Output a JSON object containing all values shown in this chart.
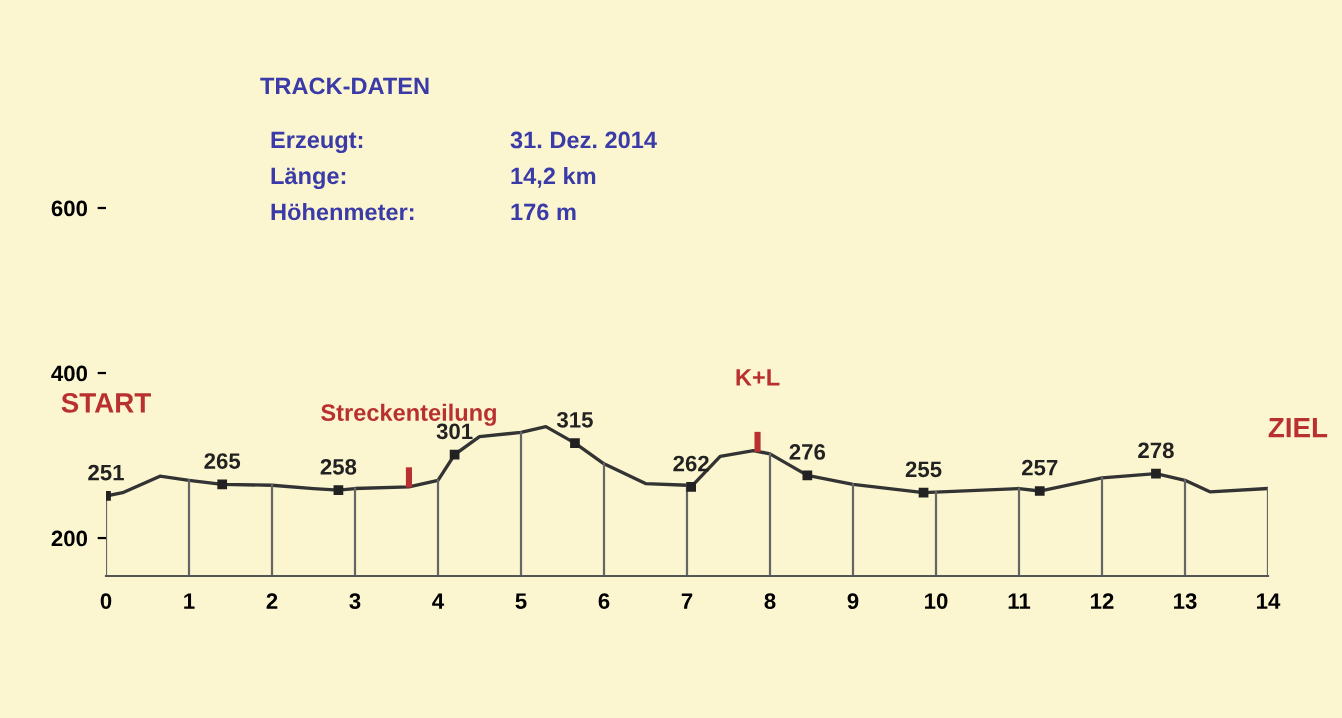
{
  "chart_data": {
    "type": "line",
    "x": [
      0,
      0.2,
      0.65,
      1,
      1.4,
      2,
      2.5,
      2.8,
      3,
      3.65,
      4,
      4.2,
      4.5,
      5,
      5.3,
      5.65,
      6,
      6.5,
      7,
      7.05,
      7.4,
      7.8,
      8,
      8.45,
      9,
      9.85,
      11,
      11.25,
      12,
      12.65,
      13,
      13.3,
      14
    ],
    "series": [
      {
        "color": "#333333",
        "values": [
          251,
          255,
          275,
          270,
          265,
          264,
          260,
          258,
          260,
          262,
          270,
          301,
          323,
          328,
          335,
          315,
          290,
          266,
          264,
          262,
          299,
          306,
          302,
          276,
          265,
          255,
          260,
          257,
          273,
          278,
          270,
          256,
          260
        ],
        "value_labels": [
          "251",
          null,
          null,
          null,
          "265",
          null,
          null,
          "258",
          null,
          null,
          null,
          "301",
          null,
          null,
          null,
          "315",
          null,
          null,
          null,
          "262",
          null,
          null,
          null,
          "276",
          null,
          "255",
          null,
          "257",
          null,
          "278",
          null,
          null,
          null
        ]
      }
    ],
    "xlim": [
      0,
      14
    ],
    "ylim": [
      154,
      600
    ],
    "xticks": [
      0,
      1,
      2,
      3,
      4,
      5,
      6,
      7,
      8,
      9,
      10,
      11,
      12,
      13,
      14
    ],
    "yticks": [
      200,
      400,
      600
    ],
    "ref_lines": [
      {
        "axis": "x",
        "value": 0,
        "color": "#666666"
      },
      {
        "axis": "x",
        "value": 1,
        "color": "#666666"
      },
      {
        "axis": "x",
        "value": 2,
        "color": "#666666"
      },
      {
        "axis": "x",
        "value": 3,
        "color": "#666666"
      },
      {
        "axis": "x",
        "value": 4,
        "color": "#666666"
      },
      {
        "axis": "x",
        "value": 5,
        "color": "#666666"
      },
      {
        "axis": "x",
        "value": 6,
        "color": "#666666"
      },
      {
        "axis": "x",
        "value": 7,
        "color": "#666666"
      },
      {
        "axis": "x",
        "value": 8,
        "color": "#666666"
      },
      {
        "axis": "x",
        "value": 9,
        "color": "#666666"
      },
      {
        "axis": "x",
        "value": 10,
        "color": "#666666"
      },
      {
        "axis": "x",
        "value": 11,
        "color": "#666666"
      },
      {
        "axis": "x",
        "value": 12,
        "color": "#666666"
      },
      {
        "axis": "x",
        "value": 13,
        "color": "#666666"
      },
      {
        "axis": "x",
        "value": 14,
        "color": "#666666"
      }
    ],
    "marker": "none",
    "line_style": "solid",
    "legend": false,
    "annotations": [
      "TRACK-DATEN",
      "Erzeugt:",
      "31. Dez. 2014",
      "Länge:",
      "14,2 km",
      "Höhenmeter:",
      "176 m",
      "ZIEL",
      {
        "text": "START",
        "x": 0,
        "y": 251
      },
      {
        "text": "Streckenteilung",
        "x": 3.65,
        "y": 262
      },
      {
        "text": "K+L",
        "x": 7.85,
        "y": 305
      }
    ]
  }
}
